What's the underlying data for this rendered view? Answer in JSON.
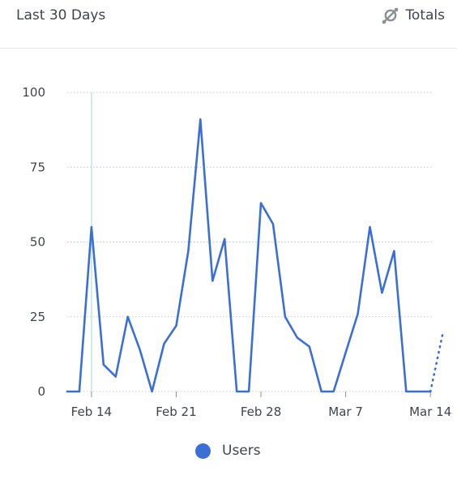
{
  "header": {
    "range_label": "Last 30 Days",
    "totals_label": "Totals",
    "totals_icon": "compare-icon"
  },
  "colors": {
    "series": "#3a6fd8",
    "grid": "#c8ccd2",
    "highlight": "#bfe7e1"
  },
  "chart_data": {
    "type": "line",
    "x_start": "Feb 12",
    "x_tick_labels": [
      "Feb 14",
      "Feb 21",
      "Feb 28",
      "Mar 7",
      "Mar 14"
    ],
    "x_tick_dates": [
      "Feb 14",
      "Feb 21",
      "Feb 28",
      "Mar 7",
      "Mar 14"
    ],
    "ylim": [
      0,
      100
    ],
    "y_ticks": [
      0,
      25,
      50,
      75,
      100
    ],
    "grid": "horizontal-dotted",
    "highlighted_date": "Feb 14",
    "legend_position": "bottom-center",
    "series": [
      {
        "name": "Users",
        "x": [
          "Feb 12",
          "Feb 13",
          "Feb 14",
          "Feb 15",
          "Feb 16",
          "Feb 17",
          "Feb 18",
          "Feb 19",
          "Feb 20",
          "Feb 21",
          "Feb 22",
          "Feb 23",
          "Feb 24",
          "Feb 25",
          "Feb 26",
          "Feb 27",
          "Feb 28",
          "Mar 1",
          "Mar 2",
          "Mar 3",
          "Mar 4",
          "Mar 5",
          "Mar 6",
          "Mar 7",
          "Mar 8",
          "Mar 9",
          "Mar 10",
          "Mar 11",
          "Mar 12",
          "Mar 13",
          "Mar 14"
        ],
        "values": [
          0,
          0,
          55,
          9,
          5,
          25,
          14,
          0,
          16,
          22,
          47,
          91,
          37,
          51,
          0,
          0,
          63,
          56,
          25,
          18,
          15,
          0,
          0,
          13,
          26,
          55,
          33,
          47,
          0,
          0,
          0
        ],
        "partial_x": [
          "Mar 14",
          "Mar 15"
        ],
        "partial_values": [
          0,
          19
        ]
      }
    ]
  }
}
